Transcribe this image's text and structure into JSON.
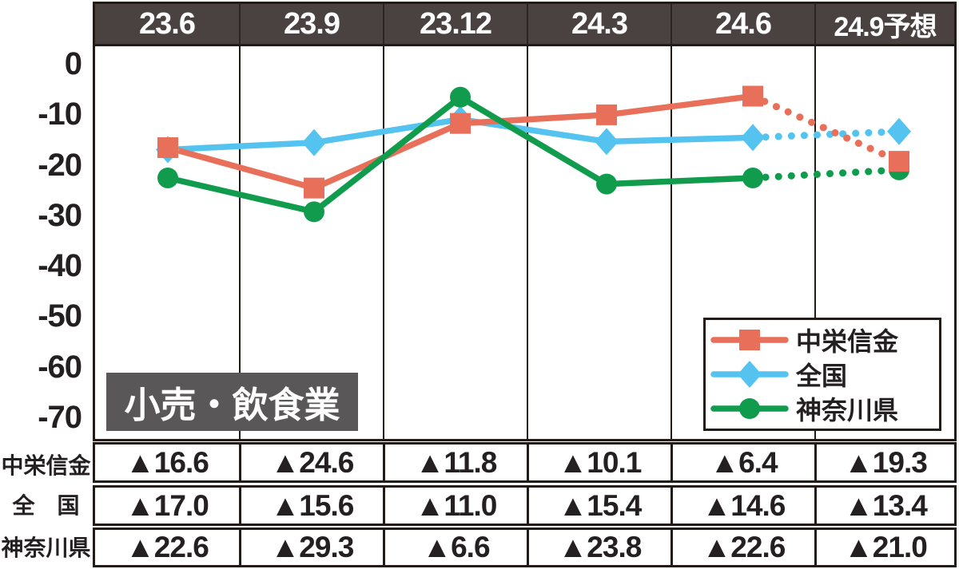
{
  "chart": {
    "x_labels": [
      "23.6",
      "23.9",
      "23.12",
      "24.3",
      "24.6",
      "24.9予想"
    ],
    "y_ticks": [
      "0",
      "-10",
      "-20",
      "-30",
      "-40",
      "-50",
      "-60",
      "-70"
    ],
    "industry_label": "小売・飲食業"
  },
  "legend": {
    "items": [
      {
        "label": "中栄信金"
      },
      {
        "label": "全国"
      },
      {
        "label": "神奈川県"
      }
    ]
  },
  "chart_data": {
    "type": "line",
    "title": "小売・飲食業",
    "categories": [
      "23.6",
      "23.9",
      "23.12",
      "24.3",
      "24.6",
      "24.9予想"
    ],
    "series": [
      {
        "name": "中栄信金",
        "marker": "square",
        "color": "#e8705a",
        "values": [
          -16.6,
          -24.6,
          -11.8,
          -10.1,
          -6.4,
          -19.3
        ]
      },
      {
        "name": "全国",
        "marker": "diamond",
        "color": "#55c3f0",
        "values": [
          -17.0,
          -15.6,
          -11.0,
          -15.4,
          -14.6,
          -13.4
        ]
      },
      {
        "name": "神奈川県",
        "marker": "circle",
        "color": "#119c4d",
        "values": [
          -22.6,
          -29.3,
          -6.6,
          -23.8,
          -22.6,
          -21.0
        ]
      }
    ],
    "last_category_is_forecast": true,
    "last_segment_dotted": true,
    "ylim": [
      -70,
      0
    ],
    "yticks": [
      0,
      -10,
      -20,
      -30,
      -40,
      -50,
      -60,
      -70
    ],
    "grid": "vertical-only",
    "legend_position": "bottom-right"
  },
  "table": {
    "rows": [
      {
        "label": "中栄信金",
        "values": [
          "▲16.6",
          "▲24.6",
          "▲11.8",
          "▲10.1",
          "▲6.4",
          "▲19.3"
        ]
      },
      {
        "label": "全　国",
        "values": [
          "▲17.0",
          "▲15.6",
          "▲11.0",
          "▲15.4",
          "▲14.6",
          "▲13.4"
        ]
      },
      {
        "label": "神奈川県",
        "values": [
          "▲22.6",
          "▲29.3",
          "▲6.6",
          "▲23.8",
          "▲22.6",
          "▲21.0"
        ]
      }
    ]
  },
  "colors": {
    "header_bg": "#4a4241",
    "label_box_bg": "#595757",
    "frame": "#231b18",
    "text": "#242021"
  }
}
